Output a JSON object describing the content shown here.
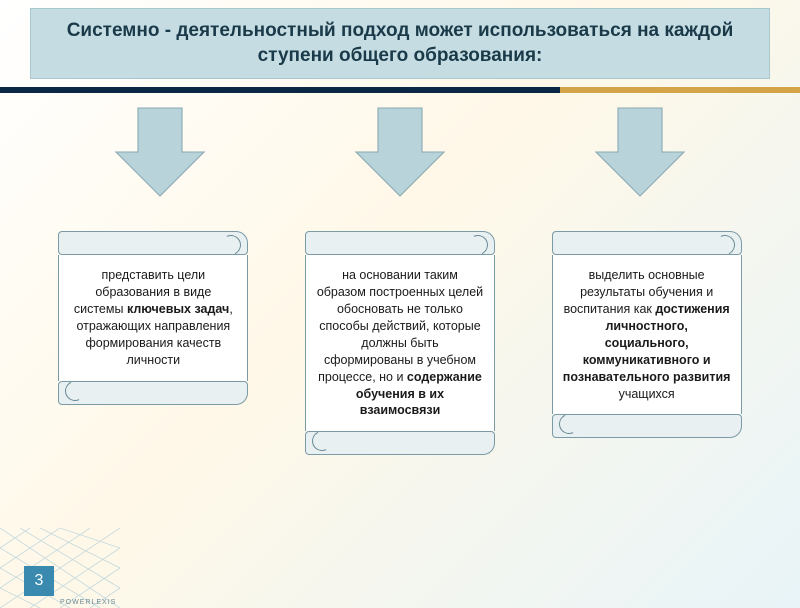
{
  "title": "Системно - деятельностный подход может использоваться на каждой ступени общего образования:",
  "arrow": {
    "fill": "#b8d4da",
    "stroke": "#88a8b2"
  },
  "scrolls": [
    {
      "html": "представить цели образования в виде системы <b>ключевых задач</b>, отражающих направления формирования качеств личности"
    },
    {
      "html": "на основании таким образом построенных целей обосновать не только способы действий, которые должны быть сформированы в учебном процессе, но и <b>содержание обучения в их взаимосвязи</b>"
    },
    {
      "html": "выделить основные результаты обучения и воспитания как <b>достижения личностного, социального, коммуникативного и познавательного развития</b> учащихся"
    }
  ],
  "page_number": "3",
  "logo_text": "POWERLEXIS",
  "divider": {
    "left_color": "#0a2845",
    "right_color": "#d4a548"
  },
  "corner_grid_color": "#5aa0c8"
}
